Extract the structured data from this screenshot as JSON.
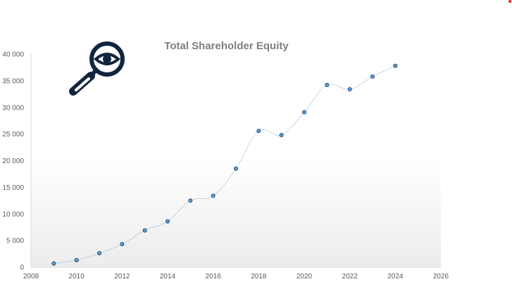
{
  "colors": {
    "marker_fill": "#5b9bd5",
    "marker_stroke": "#1f3f5f",
    "line": "#8fb4d6",
    "axis": "#d9d9d9",
    "tick_text": "#595959",
    "title": "#7f7f7f",
    "logo": "#10253f",
    "corner_dot": "#e0252b"
  },
  "logo_icon": "magnifier-eye-icon",
  "chart_data": {
    "type": "scatter",
    "title": "Total Shareholder Equity",
    "xlabel": "",
    "ylabel": "",
    "xlim": [
      2008,
      2026
    ],
    "ylim": [
      0,
      40000
    ],
    "xticks": [
      "2008",
      "2010",
      "2012",
      "2014",
      "2016",
      "2018",
      "2020",
      "2022",
      "2024",
      "2026"
    ],
    "yticks": [
      "0",
      "5 000",
      "10 000",
      "15 000",
      "20 000",
      "25 000",
      "30 000",
      "35 000",
      "40 000"
    ],
    "grid": false,
    "legend": "none",
    "series": [
      {
        "x": [
          2009,
          2010,
          2011,
          2012,
          2013,
          2014,
          2015,
          2016,
          2017,
          2018,
          2019,
          2020,
          2021,
          2022,
          2023,
          2024
        ],
        "y": [
          700,
          1300,
          2600,
          4300,
          6900,
          8600,
          12500,
          13400,
          18500,
          25600,
          24800,
          29100,
          34200,
          33400,
          35800,
          37800
        ]
      }
    ]
  }
}
